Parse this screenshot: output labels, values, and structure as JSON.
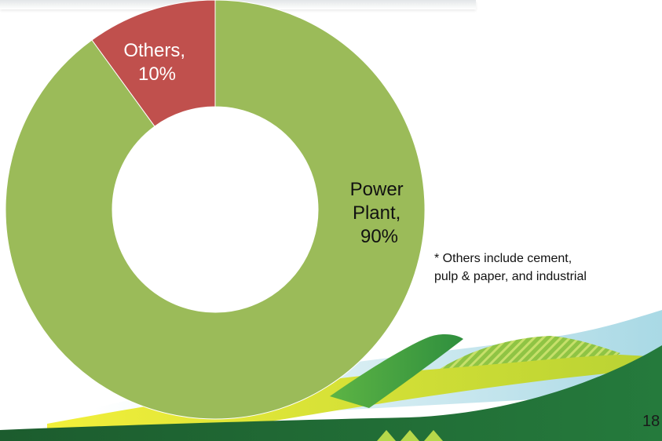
{
  "chart_data": {
    "type": "pie",
    "hole": true,
    "slices": [
      {
        "label": "Power Plant",
        "value": 90,
        "color": "#9bbb59"
      },
      {
        "label": "Others",
        "value": 10,
        "color": "#c0504d"
      }
    ]
  },
  "labels": {
    "others_line1": "Others,",
    "others_line2": "10%",
    "power_line1": "Power",
    "power_line2": "Plant,",
    "power_line3": "90%"
  },
  "footnote": {
    "line1": "* Others include cement,",
    "line2": "pulp & paper, and industrial"
  },
  "page_number": "18",
  "colors": {
    "dark_green": "#1f6b34",
    "mid_green": "#3aa142",
    "yellow": "#e2e023",
    "light_blue": "#b9dfe8"
  }
}
